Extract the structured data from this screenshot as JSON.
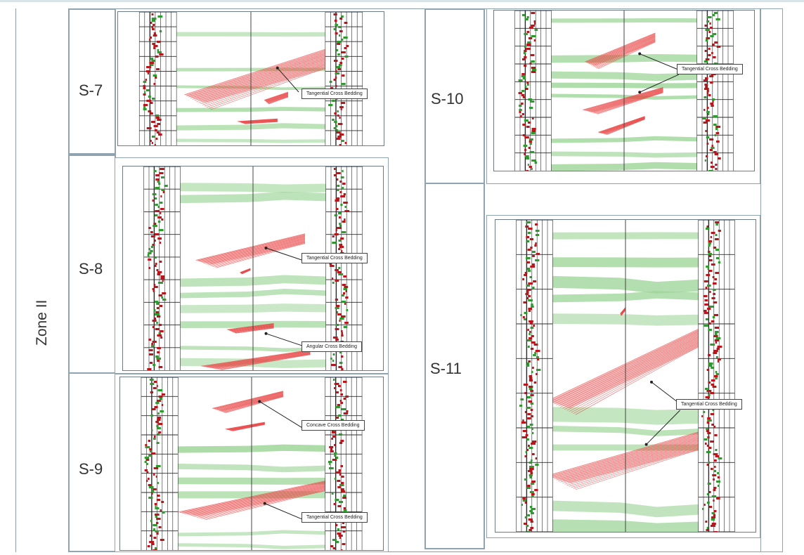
{
  "zone": {
    "label": "Zone II"
  },
  "sections": {
    "s7": {
      "label": "S-7",
      "annotations": [
        "Tangential Cross Bedding"
      ]
    },
    "s8": {
      "label": "S-8",
      "annotations": [
        "Tangential Cross Bedding",
        "Angular Cross Bedding"
      ]
    },
    "s9": {
      "label": "S-9",
      "annotations": [
        "Concave Cross Bedding",
        "Tangential Cross Bedding"
      ]
    },
    "s10": {
      "label": "S-10",
      "annotations": [
        "Tangential Cross Bedding"
      ]
    },
    "s11": {
      "label": "S-11",
      "annotations": [
        "Tangential Cross Bedding"
      ]
    }
  },
  "colors": {
    "cross_bedding": "#e84848",
    "strata": "#9fd69a",
    "log_red": "#b8161a",
    "log_green": "#2e9a2e",
    "grid": "#2a2a2a",
    "border": "#8fa3b0"
  }
}
